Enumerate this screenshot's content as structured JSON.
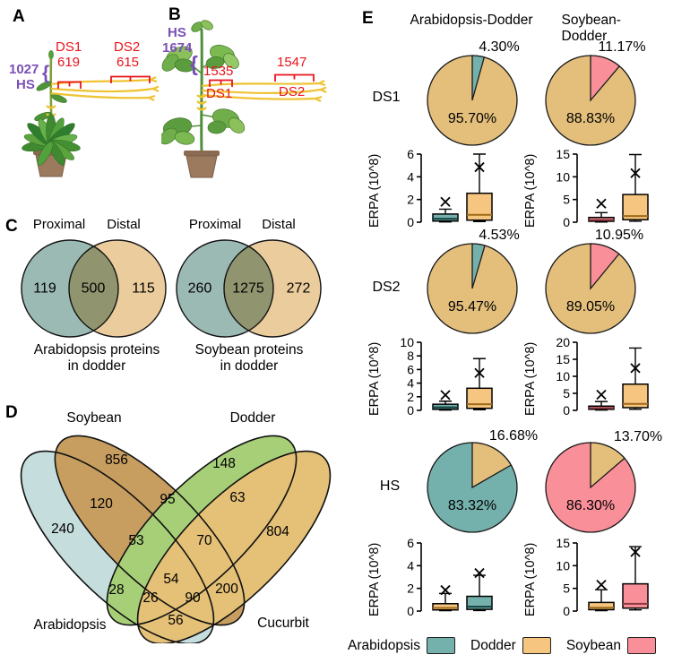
{
  "colors": {
    "teal": "#74b0ac",
    "tan_pie": "#e4bf7c",
    "tan_box": "#f6c57f",
    "pink": "#f98f99",
    "red_label": "#e8141c",
    "purple_label": "#7a4fb5",
    "dodder_strand": "#eec42f",
    "venn_c_teal": "#9cbab4",
    "venn_c_tan": "#ebcc9d",
    "venn_d_arabidopsis": "#c5dedd",
    "venn_d_soybean": "#c79e60",
    "venn_d_dodder": "#a6cf78",
    "venn_d_cucurbit": "#e5c177"
  },
  "panel_a": {
    "letter": "A",
    "hs_value": "1027",
    "hs_label": "HS",
    "ds1_label": "DS1",
    "ds1_value": "619",
    "ds2_label": "DS2",
    "ds2_value": "615",
    "brace": "{"
  },
  "panel_b": {
    "letter": "B",
    "hs_label": "HS",
    "hs_value": "1674",
    "ds1_value": "1535",
    "ds1_label": "DS1",
    "ds2_value": "1547",
    "ds2_label": "DS2",
    "brace": "{"
  },
  "panel_c": {
    "letter": "C"
  },
  "panel_d": {
    "letter": "D",
    "set_soybean": "Soybean",
    "set_dodder": "Dodder",
    "set_arabidopsis": "Arabidopsis",
    "set_cucurbit": "Cucurbit"
  },
  "panel_e": {
    "letter": "E",
    "col1": "Arabidopsis-Dodder",
    "col2": "Soybean-Dodder",
    "row1": "DS1",
    "row2": "DS2",
    "row3": "HS",
    "erpa_label": "ERPA (10^8)",
    "legend": [
      {
        "label": "Arabidopsis",
        "color": "#74b0ac"
      },
      {
        "label": "Dodder",
        "color": "#f6c57f"
      },
      {
        "label": "Soybean",
        "color": "#f98f99"
      }
    ]
  },
  "chart_data": [
    {
      "type": "venn2",
      "title": "Arabidopsis proteins in dodder",
      "caption_line1": "Arabidopsis proteins",
      "caption_line2": "in dodder",
      "left_set": "Proximal",
      "right_set": "Distal",
      "left_only": 119,
      "overlap": 500,
      "right_only": 115
    },
    {
      "type": "venn2",
      "title": "Soybean proteins in dodder",
      "caption_line1": "Soybean proteins",
      "caption_line2": "in dodder",
      "left_set": "Proximal",
      "right_set": "Distal",
      "left_only": 260,
      "overlap": 1275,
      "right_only": 272
    },
    {
      "type": "venn4",
      "sets": [
        "Arabidopsis",
        "Soybean",
        "Dodder",
        "Cucurbit"
      ],
      "regions": {
        "arabidopsis_only": 240,
        "soybean_only": 856,
        "dodder_only": 148,
        "cucurbit_only": 804,
        "arabidopsis_soybean": 120,
        "soybean_dodder": 95,
        "dodder_cucurbit": 63,
        "arabidopsis_dodder": 28,
        "soybean_cucurbit": 200,
        "arabidopsis_cucurbit": 56,
        "arabidopsis_soybean_dodder": 53,
        "soybean_dodder_cucurbit": 70,
        "arabidopsis_dodder_cucurbit": 26,
        "arabidopsis_soybean_cucurbit": 90,
        "all_four": 54
      }
    },
    {
      "type": "pie",
      "row": "DS1",
      "pair": "Arabidopsis-Dodder",
      "slices": [
        {
          "name": "Dodder",
          "pct": 95.7,
          "label": "95.70%",
          "color": "#e4bf7c"
        },
        {
          "name": "Arabidopsis",
          "pct": 4.3,
          "label": "4.30%",
          "color": "#74b0ac"
        }
      ]
    },
    {
      "type": "pie",
      "row": "DS1",
      "pair": "Soybean-Dodder",
      "slices": [
        {
          "name": "Dodder",
          "pct": 88.83,
          "label": "88.83%",
          "color": "#e4bf7c"
        },
        {
          "name": "Soybean",
          "pct": 11.17,
          "label": "11.17%",
          "color": "#f98f99"
        }
      ]
    },
    {
      "type": "box",
      "row": "DS1",
      "pair": "Arabidopsis-Dodder",
      "ylabel": "ERPA (10^8)",
      "ylim": [
        0,
        6
      ],
      "yticks": [
        0,
        2,
        4,
        6
      ],
      "boxes": [
        {
          "name": "Arabidopsis",
          "color": "#74b0ac",
          "median_color": "#123f3c",
          "whisker_low": 0.03,
          "q1": 0.1,
          "median": 0.3,
          "q3": 0.72,
          "whisker_high": 1.15,
          "mean": 1.8
        },
        {
          "name": "Dodder",
          "color": "#f6c57f",
          "median_color": "#a06a1c",
          "whisker_low": 0.06,
          "q1": 0.18,
          "median": 0.65,
          "q3": 2.55,
          "whisker_high": 6.0,
          "mean": 4.85
        }
      ]
    },
    {
      "type": "box",
      "row": "DS1",
      "pair": "Soybean-Dodder",
      "ylabel": "ERPA (10^8)",
      "ylim": [
        0,
        15
      ],
      "yticks": [
        0,
        5,
        10,
        15
      ],
      "boxes": [
        {
          "name": "Soybean",
          "color": "#f98f99",
          "median_color": "#8f3a42",
          "whisker_low": 0.05,
          "q1": 0.2,
          "median": 0.5,
          "q3": 1.05,
          "whisker_high": 2.1,
          "mean": 4.1
        },
        {
          "name": "Dodder",
          "color": "#f6c57f",
          "median_color": "#a06a1c",
          "whisker_low": 0.2,
          "q1": 0.55,
          "median": 1.35,
          "q3": 6.1,
          "whisker_high": 14.9,
          "mean": 10.8
        }
      ]
    },
    {
      "type": "pie",
      "row": "DS2",
      "pair": "Arabidopsis-Dodder",
      "slices": [
        {
          "name": "Dodder",
          "pct": 95.47,
          "label": "95.47%",
          "color": "#e4bf7c"
        },
        {
          "name": "Arabidopsis",
          "pct": 4.53,
          "label": "4.53%",
          "color": "#74b0ac"
        }
      ]
    },
    {
      "type": "pie",
      "row": "DS2",
      "pair": "Soybean-Dodder",
      "slices": [
        {
          "name": "Dodder",
          "pct": 89.05,
          "label": "89.05%",
          "color": "#e4bf7c"
        },
        {
          "name": "Soybean",
          "pct": 10.95,
          "label": "10.95%",
          "color": "#f98f99"
        }
      ]
    },
    {
      "type": "box",
      "row": "DS2",
      "pair": "Arabidopsis-Dodder",
      "ylabel": "ERPA (10^8)",
      "ylim": [
        0,
        10
      ],
      "yticks": [
        0,
        2,
        4,
        6,
        8,
        10
      ],
      "boxes": [
        {
          "name": "Arabidopsis",
          "color": "#74b0ac",
          "median_color": "#123f3c",
          "whisker_low": 0.05,
          "q1": 0.15,
          "median": 0.45,
          "q3": 0.9,
          "whisker_high": 1.35,
          "mean": 2.25
        },
        {
          "name": "Dodder",
          "color": "#f6c57f",
          "median_color": "#a06a1c",
          "whisker_low": 0.1,
          "q1": 0.3,
          "median": 0.9,
          "q3": 3.25,
          "whisker_high": 7.6,
          "mean": 5.5
        }
      ]
    },
    {
      "type": "box",
      "row": "DS2",
      "pair": "Soybean-Dodder",
      "ylabel": "ERPA (10^8)",
      "ylim": [
        0,
        20
      ],
      "yticks": [
        0,
        5,
        10,
        15,
        20
      ],
      "boxes": [
        {
          "name": "Soybean",
          "color": "#f98f99",
          "median_color": "#8f3a42",
          "whisker_low": 0.1,
          "q1": 0.3,
          "median": 0.7,
          "q3": 1.25,
          "whisker_high": 2.6,
          "mean": 4.6
        },
        {
          "name": "Dodder",
          "color": "#f6c57f",
          "median_color": "#a06a1c",
          "whisker_low": 0.3,
          "q1": 0.8,
          "median": 1.9,
          "q3": 7.7,
          "whisker_high": 18.3,
          "mean": 12.4
        }
      ]
    },
    {
      "type": "pie",
      "row": "HS",
      "pair": "Arabidopsis-Dodder",
      "slices": [
        {
          "name": "Arabidopsis",
          "pct": 83.32,
          "label": "83.32%",
          "color": "#74b0ac"
        },
        {
          "name": "Dodder",
          "pct": 16.68,
          "label": "16.68%",
          "color": "#e4bf7c"
        }
      ]
    },
    {
      "type": "pie",
      "row": "HS",
      "pair": "Soybean-Dodder",
      "slices": [
        {
          "name": "Soybean",
          "pct": 86.3,
          "label": "86.30%",
          "color": "#f98f99"
        },
        {
          "name": "Dodder",
          "pct": 13.7,
          "label": "13.70%",
          "color": "#e4bf7c"
        }
      ]
    },
    {
      "type": "box",
      "row": "HS",
      "pair": "Arabidopsis-Dodder",
      "ylabel": "ERPA (10^8)",
      "ylim": [
        0,
        6
      ],
      "yticks": [
        0,
        2,
        4,
        6
      ],
      "boxes": [
        {
          "name": "Dodder",
          "color": "#f6c57f",
          "median_color": "#a06a1c",
          "whisker_low": 0.04,
          "q1": 0.1,
          "median": 0.28,
          "q3": 0.65,
          "whisker_high": 1.55,
          "mean": 1.85
        },
        {
          "name": "Arabidopsis",
          "color": "#74b0ac",
          "median_color": "#123f3c",
          "whisker_low": 0.05,
          "q1": 0.15,
          "median": 0.38,
          "q3": 1.3,
          "whisker_high": 3.15,
          "mean": 3.35
        }
      ]
    },
    {
      "type": "box",
      "row": "HS",
      "pair": "Soybean-Dodder",
      "ylabel": "ERPA (10^8)",
      "ylim": [
        0,
        15
      ],
      "yticks": [
        0,
        5,
        10,
        15
      ],
      "boxes": [
        {
          "name": "Dodder",
          "color": "#f6c57f",
          "median_color": "#a06a1c",
          "whisker_low": 0.1,
          "q1": 0.3,
          "median": 0.75,
          "q3": 1.9,
          "whisker_high": 4.7,
          "mean": 5.8
        },
        {
          "name": "Soybean",
          "color": "#f98f99",
          "median_color": "#8f3a42",
          "whisker_low": 0.25,
          "q1": 0.65,
          "median": 1.6,
          "q3": 6.0,
          "whisker_high": 14.2,
          "mean": 13.0
        }
      ]
    }
  ]
}
